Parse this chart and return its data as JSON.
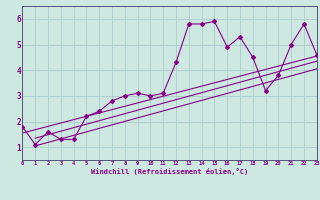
{
  "xlabel": "Windchill (Refroidissement éolien,°C)",
  "bg_color": "#cce8e0",
  "line_color": "#880088",
  "grid_color": "#aacccc",
  "x_data": [
    0,
    1,
    2,
    3,
    4,
    5,
    6,
    7,
    8,
    9,
    10,
    11,
    12,
    13,
    14,
    15,
    16,
    17,
    18,
    19,
    20,
    21,
    22,
    23
  ],
  "y_main": [
    1.8,
    1.1,
    1.6,
    1.3,
    1.3,
    2.2,
    2.4,
    2.8,
    3.0,
    3.1,
    3.0,
    3.1,
    4.3,
    5.8,
    5.8,
    5.9,
    4.9,
    5.3,
    4.5,
    3.2,
    3.8,
    5.0,
    5.8,
    4.6
  ],
  "trend1_x": [
    0,
    23
  ],
  "trend1_y": [
    1.55,
    4.55
  ],
  "trend2_x": [
    1,
    23
  ],
  "trend2_y": [
    1.35,
    4.35
  ],
  "trend3_x": [
    1,
    23
  ],
  "trend3_y": [
    1.05,
    4.05
  ],
  "xlim": [
    0,
    23
  ],
  "ylim": [
    0.5,
    6.5
  ],
  "xticks": [
    0,
    1,
    2,
    3,
    4,
    5,
    6,
    7,
    8,
    9,
    10,
    11,
    12,
    13,
    14,
    15,
    16,
    17,
    18,
    19,
    20,
    21,
    22,
    23
  ],
  "yticks": [
    1,
    2,
    3,
    4,
    5,
    6
  ]
}
